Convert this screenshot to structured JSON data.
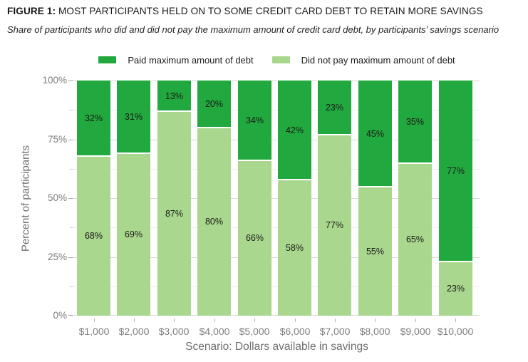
{
  "figure": {
    "label": "FIGURE 1:",
    "title_rest": " MOST PARTICIPANTS HELD ON TO SOME CREDIT CARD DEBT TO RETAIN MORE SAVINGS",
    "subtitle": "Share of participants who did and did not pay the maximum amount of credit card debt, by participants’ savings scenario"
  },
  "chart_data": {
    "type": "bar",
    "stacked": true,
    "stack_total": 100,
    "orientation": "vertical",
    "categories": [
      "$1,000",
      "$2,000",
      "$3,000",
      "$4,000",
      "$5,000",
      "$6,000",
      "$7,000",
      "$8,000",
      "$9,000",
      "$10,000"
    ],
    "series": [
      {
        "name": "Paid maximum amount of debt",
        "color": "#21a83e",
        "values": [
          32,
          31,
          13,
          20,
          34,
          42,
          23,
          45,
          35,
          77
        ]
      },
      {
        "name": "Did not pay maximum amount of debt",
        "color": "#a9d78d",
        "values": [
          68,
          69,
          87,
          80,
          66,
          58,
          77,
          55,
          65,
          23
        ]
      }
    ],
    "data_labels_format": "percent",
    "xlabel": "Scenario: Dollars available in savings",
    "ylabel": "Percent of participants",
    "ylim": [
      0,
      100
    ],
    "y_major_ticks": [
      {
        "value": 0,
        "label": "0%"
      },
      {
        "value": 25,
        "label": "25%"
      },
      {
        "value": 50,
        "label": "50%"
      },
      {
        "value": 75,
        "label": "75%"
      },
      {
        "value": 100,
        "label": "100%"
      }
    ],
    "y_minor_ticks": [
      12.5,
      37.5,
      62.5,
      87.5
    ],
    "grid": "horizontal",
    "legend_position": "top"
  }
}
